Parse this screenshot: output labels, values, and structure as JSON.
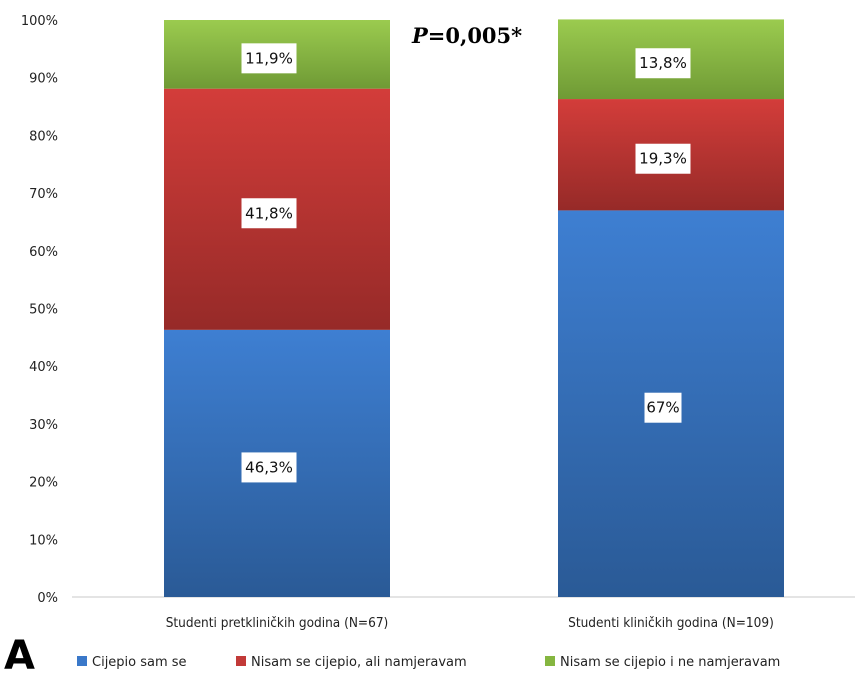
{
  "chart_data": {
    "type": "bar",
    "stacked": true,
    "categories": [
      "Studenti pretkliničkih godina (N=67)",
      "Studenti kliničkih godina (N=109)"
    ],
    "series": [
      {
        "name": "Cijepio sam se",
        "values": [
          46.3,
          67.0
        ],
        "labels": [
          "46,3%",
          "67%"
        ],
        "color": "#3a78c9"
      },
      {
        "name": "Nisam se cijepio, ali namjeravam",
        "values": [
          41.8,
          19.3
        ],
        "labels": [
          "41,8%",
          "19,3%"
        ],
        "color": "#c23a38"
      },
      {
        "name": "Nisam se cijepio i ne namjeravam",
        "values": [
          11.9,
          13.8
        ],
        "labels": [
          "11,9%",
          "13,8%"
        ],
        "color": "#85b640"
      }
    ],
    "yticks": [
      "0%",
      "10%",
      "20%",
      "30%",
      "40%",
      "50%",
      "60%",
      "70%",
      "80%",
      "90%",
      "100%"
    ],
    "ylim": [
      0,
      100
    ],
    "annotation": "P=0,005*",
    "panel_label": "A",
    "legend_position": "bottom"
  }
}
